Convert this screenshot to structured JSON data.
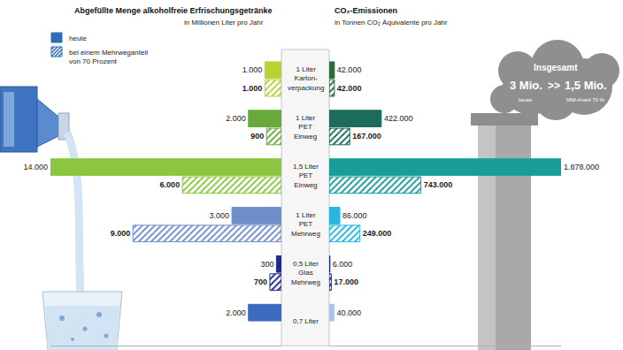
{
  "chart_data": [
    {
      "type": "bar",
      "orientation": "horizontal",
      "title": "Abgefüllte Menge alkoholfreie Erfrischungsgetränke",
      "subtitle": "in Millionen Liter pro Jahr",
      "categories": [
        "1 Liter\nKarton-\nverpackung",
        "1 Liter\nPET\nEinweg",
        "1,5 Liter\nPET\nEinweg",
        "1 Liter\nPET\nMehrweg",
        "0,5 Liter\nGlas\nMehrweg",
        "0,7 Liter"
      ],
      "series": [
        {
          "name": "heute",
          "color": "#2f6db5",
          "colors": [
            "#b9d133",
            "#6aaa3a",
            "#8cc63f",
            "#6f8fca",
            "#1f2c8c",
            "#3b6cc0"
          ],
          "values": [
            1000,
            2000,
            14000,
            3000,
            300,
            2000
          ],
          "value_labels": [
            "1.000",
            "2.000",
            "14.000",
            "3.000",
            "300",
            "2.000"
          ]
        },
        {
          "name": "bei einem Mehrweganteil\nvon 70 Prozent",
          "color": "#2f6db5",
          "marker": "hatched",
          "colors": [
            "#b9d133",
            "#6aaa3a",
            "#8cc63f",
            "#6f8fca",
            "#1f2c8c",
            "#3b6cc0"
          ],
          "values": [
            1000,
            900,
            6000,
            9000,
            700,
            null
          ],
          "value_labels": [
            "1.000",
            "900",
            "6.000",
            "9.000",
            "700",
            null
          ]
        }
      ],
      "xlim": [
        0,
        14000
      ],
      "data_labels": true,
      "tick_labels": false,
      "grid": false,
      "legend": "upper left"
    },
    {
      "type": "bar",
      "orientation": "horizontal",
      "title": "CO₂-Emissionen",
      "subtitle": "in Tonnen CO₂ Äquivalente pro Jahr",
      "categories": [
        "1 Liter\nKarton-\nverpackung",
        "1 Liter\nPET\nEinweg",
        "1,5 Liter\nPET\nEinweg",
        "1 Liter\nPET\nMehrweg",
        "0,5 Liter\nGlas\nMehrweg",
        "0,7 Liter"
      ],
      "series": [
        {
          "name": "heute",
          "color": "#2f6db5",
          "colors": [
            "#2f6b3a",
            "#1d6b5c",
            "#1a9c9a",
            "#27b5e0",
            "#1a2a7a",
            "#a9c4e6"
          ],
          "values": [
            42000,
            422000,
            1878000,
            86000,
            6000,
            40000
          ],
          "value_labels": [
            "42.000",
            "422.000",
            "1.878.000",
            "86.000",
            "6.000",
            "40.000"
          ]
        },
        {
          "name": "bei einem Mehrweganteil\nvon 70 Prozent",
          "color": "#2f6db5",
          "marker": "hatched",
          "colors": [
            "#2f6b3a",
            "#1d6b5c",
            "#1a9c9a",
            "#27b5e0",
            "#1a2a7a",
            "#a9c4e6"
          ],
          "values": [
            42000,
            167000,
            743000,
            249000,
            17000,
            null
          ],
          "value_labels": [
            "42.000",
            "167.000",
            "743.000",
            "249.000",
            "17.000",
            null
          ]
        }
      ],
      "xlim": [
        0,
        1878000
      ],
      "data_labels": true,
      "tick_labels": false,
      "grid": false,
      "annotations": [
        "Insgesamt",
        "3 Mio.",
        ">>",
        "1,5 Mio.",
        "heute",
        "MW-Anteil 70 %"
      ]
    }
  ]
}
